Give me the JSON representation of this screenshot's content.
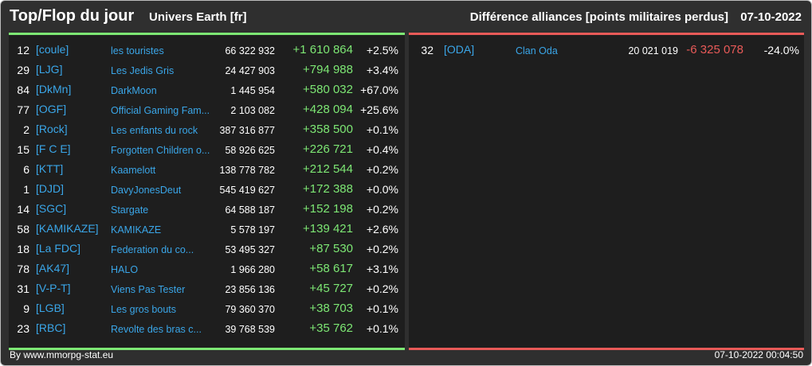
{
  "header": {
    "title": "Top/Flop du jour",
    "server": "Univers Earth [fr]",
    "section_title": "Différence alliances [points militaires perdus]",
    "date": "07-10-2022"
  },
  "colors": {
    "positive": "#7de774",
    "negative": "#e85a58",
    "link": "#3aa6e8",
    "background": "#2f2f2f",
    "panel": "#1e1e1e"
  },
  "top": [
    {
      "rank": "12",
      "tag": "[coule]",
      "name": "les touristes",
      "points": "66 322 932",
      "diff": "+1 610 864",
      "pct": "+2.5%"
    },
    {
      "rank": "29",
      "tag": "[LJG]",
      "name": "Les Jedis Gris",
      "points": "24 427 903",
      "diff": "+794 988",
      "pct": "+3.4%"
    },
    {
      "rank": "84",
      "tag": "[DkMn]",
      "name": "DarkMoon",
      "points": "1 445 954",
      "diff": "+580 032",
      "pct": "+67.0%"
    },
    {
      "rank": "77",
      "tag": "[OGF]",
      "name": "Official Gaming Fam...",
      "points": "2 103 082",
      "diff": "+428 094",
      "pct": "+25.6%"
    },
    {
      "rank": "2",
      "tag": "[Rock]",
      "name": "Les enfants du rock",
      "points": "387 316 877",
      "diff": "+358 500",
      "pct": "+0.1%"
    },
    {
      "rank": "15",
      "tag": "[F C E]",
      "name": "Forgotten Children o...",
      "points": "58 926 625",
      "diff": "+226 721",
      "pct": "+0.4%"
    },
    {
      "rank": "6",
      "tag": "[KTT]",
      "name": "Kaamelott",
      "points": "138 778 782",
      "diff": "+212 544",
      "pct": "+0.2%"
    },
    {
      "rank": "1",
      "tag": "[DJD]",
      "name": "DavyJonesDeut",
      "points": "545 419 627",
      "diff": "+172 388",
      "pct": "+0.0%"
    },
    {
      "rank": "14",
      "tag": "[SGC]",
      "name": "Stargate",
      "points": "64 588 187",
      "diff": "+152 198",
      "pct": "+0.2%"
    },
    {
      "rank": "58",
      "tag": "[KAMIKAZE]",
      "name": "KAMIKAZE",
      "points": "5 578 197",
      "diff": "+139 421",
      "pct": "+2.6%"
    },
    {
      "rank": "18",
      "tag": "[La FDC]",
      "name": "Federation du co...",
      "points": "53 495 327",
      "diff": "+87 530",
      "pct": "+0.2%"
    },
    {
      "rank": "78",
      "tag": "[AK47]",
      "name": "HALO",
      "points": "1 966 280",
      "diff": "+58 617",
      "pct": "+3.1%"
    },
    {
      "rank": "31",
      "tag": "[V-P-T]",
      "name": "Viens Pas Tester",
      "points": "23 856 136",
      "diff": "+45 727",
      "pct": "+0.2%"
    },
    {
      "rank": "9",
      "tag": "[LGB]",
      "name": "Les gros bouts",
      "points": "79 360 370",
      "diff": "+38 703",
      "pct": "+0.1%"
    },
    {
      "rank": "23",
      "tag": "[RBC]",
      "name": "Revolte des bras c...",
      "points": "39 768 539",
      "diff": "+35 762",
      "pct": "+0.1%"
    }
  ],
  "flop": [
    {
      "rank": "32",
      "tag": "[ODA]",
      "name": "Clan Oda",
      "points": "20 021 019",
      "diff": "-6 325 078",
      "pct": "-24.0%"
    }
  ],
  "footer": {
    "source": "By www.mmorpg-stat.eu",
    "timestamp": "07-10-2022 00:04:50"
  }
}
